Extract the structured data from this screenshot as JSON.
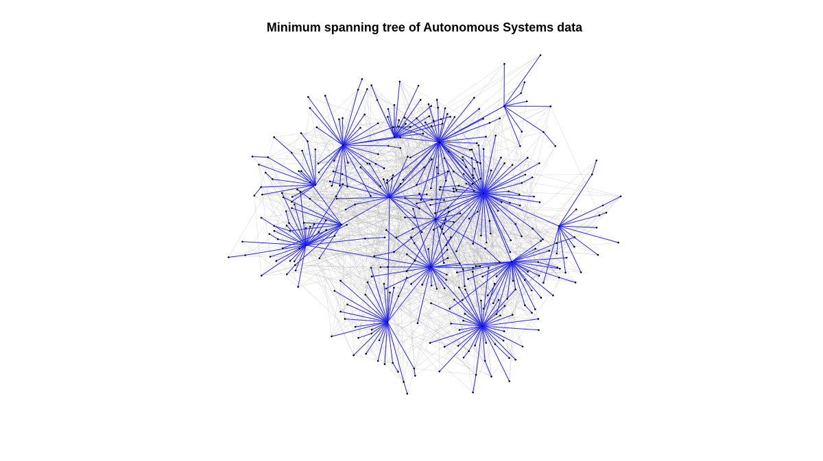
{
  "title": "Minimum spanning tree of Autonomous Systems data",
  "colors": {
    "tree_edge": "#2323ff",
    "background_edge": "#b4b4b4",
    "node": "#000000"
  },
  "diagram": {
    "type": "network",
    "layout": "force-directed",
    "hub_count": 12,
    "legend": "none",
    "axes": "none"
  }
}
